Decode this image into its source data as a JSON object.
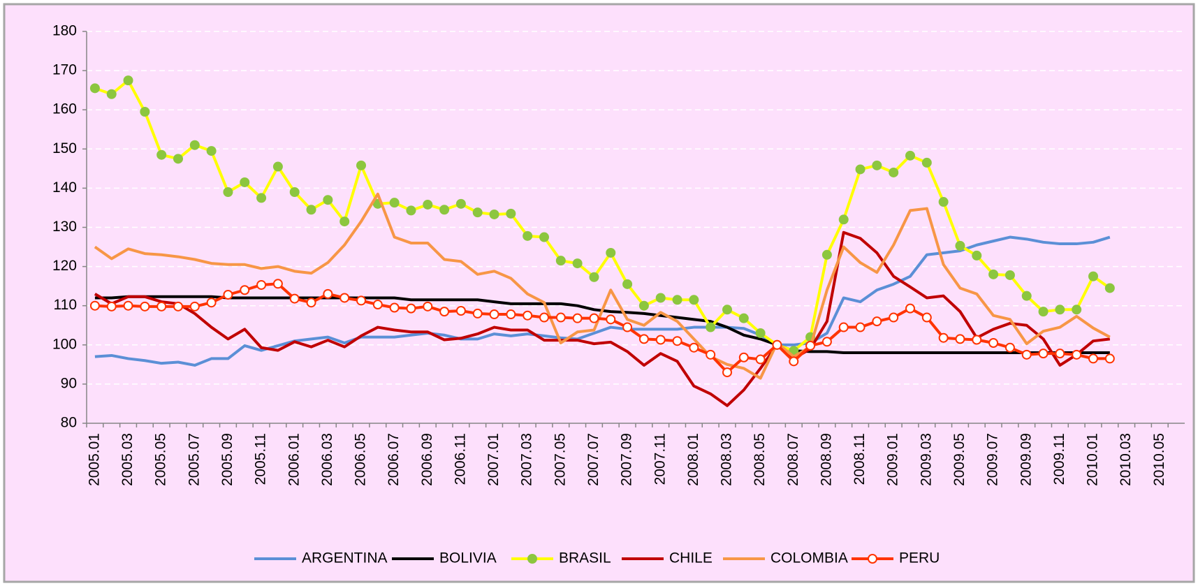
{
  "chart_data": {
    "type": "line",
    "categories": [
      "2005.01",
      null,
      "2005.03",
      null,
      "2005.05",
      null,
      "2005.07",
      null,
      "2005.09",
      null,
      "2005.11",
      null,
      "2006.01",
      null,
      "2006.03",
      null,
      "2006.05",
      null,
      "2006.07",
      null,
      "2006.09",
      null,
      "2006.11",
      null,
      "2007.01",
      null,
      "2007.03",
      null,
      "2007.05",
      null,
      "2007.07",
      null,
      "2007.09",
      null,
      "2007.11",
      null,
      "2008.01",
      null,
      "2008.03",
      null,
      "2008.05",
      null,
      "2008.07",
      null,
      "2008.09",
      null,
      "2008.11",
      null,
      "2009.01",
      null,
      "2009.03",
      null,
      "2009.05",
      null,
      "2009.07",
      null,
      "2009.09",
      null,
      "2009.11",
      null,
      "2010.01",
      null,
      "2010.03",
      null,
      "2010.05",
      null
    ],
    "ylim": [
      80,
      180
    ],
    "yticks": [
      80,
      90,
      100,
      110,
      120,
      130,
      140,
      150,
      160,
      170,
      180
    ],
    "grid": true,
    "legend": "bottom",
    "series": [
      {
        "name": "ARGENTINA",
        "color": "#5b8fd6",
        "marker": "none",
        "values": [
          97,
          97.3,
          96.5,
          96,
          95.3,
          95.6,
          94.8,
          96.5,
          96.5,
          99.8,
          98.6,
          99.8,
          101,
          101.5,
          102,
          100.5,
          102,
          102,
          102,
          102.5,
          103,
          102.5,
          101.5,
          101.5,
          102.8,
          102.3,
          102.8,
          102.3,
          101.8,
          101.5,
          103,
          104.5,
          104,
          104,
          104,
          104,
          104.5,
          104.5,
          104.5,
          104.2,
          102.5,
          100,
          100,
          100.5,
          103,
          112,
          111,
          114,
          115.5,
          117.5,
          123,
          123.5,
          124,
          125.5,
          126.5,
          127.5,
          127,
          126.2,
          125.8,
          125.8,
          126.2,
          127.5,
          null,
          null,
          null,
          null
        ]
      },
      {
        "name": "BOLIVIA",
        "color": "#000000",
        "marker": "none",
        "values": [
          112,
          112,
          112.3,
          112.3,
          112.3,
          112.3,
          112.3,
          112.3,
          112,
          112,
          112,
          112,
          112,
          112,
          112,
          112,
          112,
          112,
          112,
          111.5,
          111.5,
          111.5,
          111.5,
          111.5,
          111,
          110.5,
          110.5,
          110.5,
          110.5,
          110,
          109,
          108.5,
          108.3,
          108,
          107.5,
          107,
          106.5,
          106,
          104.5,
          102.5,
          101.5,
          100,
          98.5,
          98.3,
          98.3,
          98,
          98,
          98,
          98,
          98,
          98,
          98,
          98,
          98,
          98,
          98,
          98,
          98,
          98,
          98,
          98,
          98,
          null,
          null,
          null,
          null
        ]
      },
      {
        "name": "BRASIL",
        "color": "#ffff00",
        "marker": "circle",
        "marker_fill": "#8cc63f",
        "marker_stroke": "#8cc63f",
        "values": [
          165.5,
          164,
          167.5,
          159.5,
          148.5,
          147.5,
          151,
          149.5,
          139,
          141.5,
          137.5,
          145.5,
          139,
          134.5,
          137,
          131.5,
          145.8,
          136,
          136.3,
          134.3,
          135.8,
          134.5,
          136,
          133.8,
          133.3,
          133.5,
          127.8,
          127.5,
          121.5,
          120.8,
          117.3,
          123.5,
          115.5,
          110,
          112,
          111.5,
          111.5,
          104.5,
          109,
          106.8,
          103,
          100,
          98.5,
          102,
          123,
          132,
          144.8,
          145.8,
          144,
          148.3,
          146.5,
          136.5,
          125.3,
          122.8,
          118,
          117.8,
          112.5,
          108.5,
          109,
          109,
          117.5,
          114.5,
          null,
          null,
          null,
          null
        ]
      },
      {
        "name": "CHILE",
        "color": "#c00000",
        "marker": "none",
        "values": [
          113,
          110.5,
          112.3,
          112.3,
          111,
          110.5,
          108,
          104.5,
          101.5,
          104,
          99.3,
          98.6,
          100.8,
          99.5,
          101.2,
          99.5,
          102.3,
          104.5,
          103.8,
          103.3,
          103.3,
          101.3,
          101.7,
          102.8,
          104.5,
          103.8,
          103.8,
          101.2,
          101.2,
          101.2,
          100.3,
          100.7,
          98.3,
          94.8,
          97.8,
          95.8,
          89.5,
          87.5,
          84.5,
          88.5,
          94,
          100,
          96.5,
          99,
          106,
          128.7,
          127.2,
          123.5,
          117.5,
          114.8,
          112,
          112.5,
          108.5,
          101.8,
          104,
          105.5,
          105,
          101.5,
          94.8,
          97.5,
          101,
          101.5,
          null,
          null,
          null,
          null
        ]
      },
      {
        "name": "COLOMBIA",
        "color": "#f79646",
        "marker": "none",
        "values": [
          125,
          122,
          124.5,
          123.3,
          123,
          122.5,
          121.8,
          120.8,
          120.5,
          120.5,
          119.5,
          120,
          118.8,
          118.3,
          121,
          125.5,
          131.5,
          138.5,
          127.5,
          126,
          126,
          121.8,
          121.3,
          118,
          118.8,
          117,
          113,
          110.8,
          100.5,
          103.3,
          103.8,
          114,
          106.5,
          105,
          108.3,
          106,
          101.5,
          97,
          95,
          94,
          91.5,
          100.5,
          97,
          99.5,
          114,
          125,
          121,
          118.5,
          125.5,
          134.3,
          134.8,
          120.5,
          114.5,
          113,
          107.5,
          106.5,
          100.3,
          103.5,
          104.5,
          107.3,
          104.3,
          102,
          null,
          null,
          null,
          null
        ]
      },
      {
        "name": "PERU",
        "color": "#ff3300",
        "marker": "circle",
        "marker_fill": "#ffffff",
        "marker_stroke": "#ff3300",
        "values": [
          110,
          109.8,
          110,
          109.8,
          109.8,
          109.8,
          109.8,
          110.8,
          112.8,
          114,
          115.3,
          115.6,
          111.8,
          110.8,
          113,
          112,
          111.3,
          110.3,
          109.5,
          109.3,
          109.8,
          108.5,
          108.7,
          108,
          107.8,
          107.8,
          107.5,
          107,
          107,
          106.8,
          106.8,
          106.5,
          104.5,
          101.5,
          101.3,
          101,
          99.3,
          97.5,
          93,
          96.8,
          96.3,
          100,
          95.8,
          99.8,
          100.8,
          104.5,
          104.5,
          106,
          107,
          109.3,
          107,
          101.8,
          101.5,
          101.3,
          100.5,
          99.3,
          97.5,
          97.8,
          97.8,
          97.5,
          96.5,
          96.5,
          null,
          null,
          null,
          null
        ]
      }
    ]
  }
}
